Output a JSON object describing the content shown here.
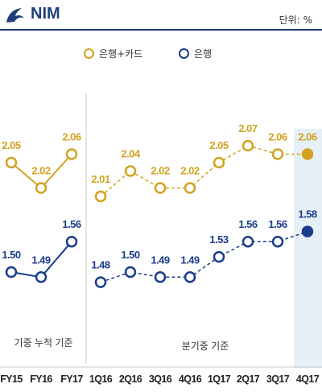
{
  "header": {
    "title": "NIM",
    "unit": "단위: %"
  },
  "colors": {
    "brand": "#1f3f7a",
    "gold": "#d2a21f",
    "navy": "#1a3c8c",
    "highlight": "#e6f1f7"
  },
  "chart_data": {
    "type": "line",
    "title": "NIM",
    "categories": [
      "FY15",
      "FY16",
      "FY17",
      "1Q16",
      "2Q16",
      "3Q16",
      "4Q16",
      "1Q17",
      "2Q17",
      "3Q17",
      "4Q17"
    ],
    "series": [
      {
        "name": "은행+카드",
        "color": "#d2a21f",
        "values": [
          2.05,
          2.02,
          2.06,
          2.01,
          2.04,
          2.02,
          2.02,
          2.05,
          2.07,
          2.06,
          2.06
        ],
        "labels": [
          "2.05",
          "2.02",
          "2.06",
          "2.01",
          "2.04",
          "2.02",
          "2.02",
          "2.05",
          "2.07",
          "2.06",
          "2.06"
        ]
      },
      {
        "name": "은행",
        "color": "#1a3c8c",
        "values": [
          1.5,
          1.49,
          1.56,
          1.48,
          1.5,
          1.49,
          1.49,
          1.53,
          1.56,
          1.56,
          1.58
        ],
        "labels": [
          "1.50",
          "1.49",
          "1.56",
          "1.48",
          "1.50",
          "1.49",
          "1.49",
          "1.53",
          "1.56",
          "1.56",
          "1.58"
        ]
      }
    ],
    "groups": [
      {
        "label": "기중 누적 기준",
        "categories": [
          "FY15",
          "FY16",
          "FY17"
        ]
      },
      {
        "label": "분기중 기준",
        "categories": [
          "1Q16",
          "2Q16",
          "3Q16",
          "4Q16",
          "1Q17",
          "2Q17",
          "3Q17",
          "4Q17"
        ]
      }
    ],
    "highlight_category": "4Q17",
    "legend": "top",
    "grid": false
  }
}
